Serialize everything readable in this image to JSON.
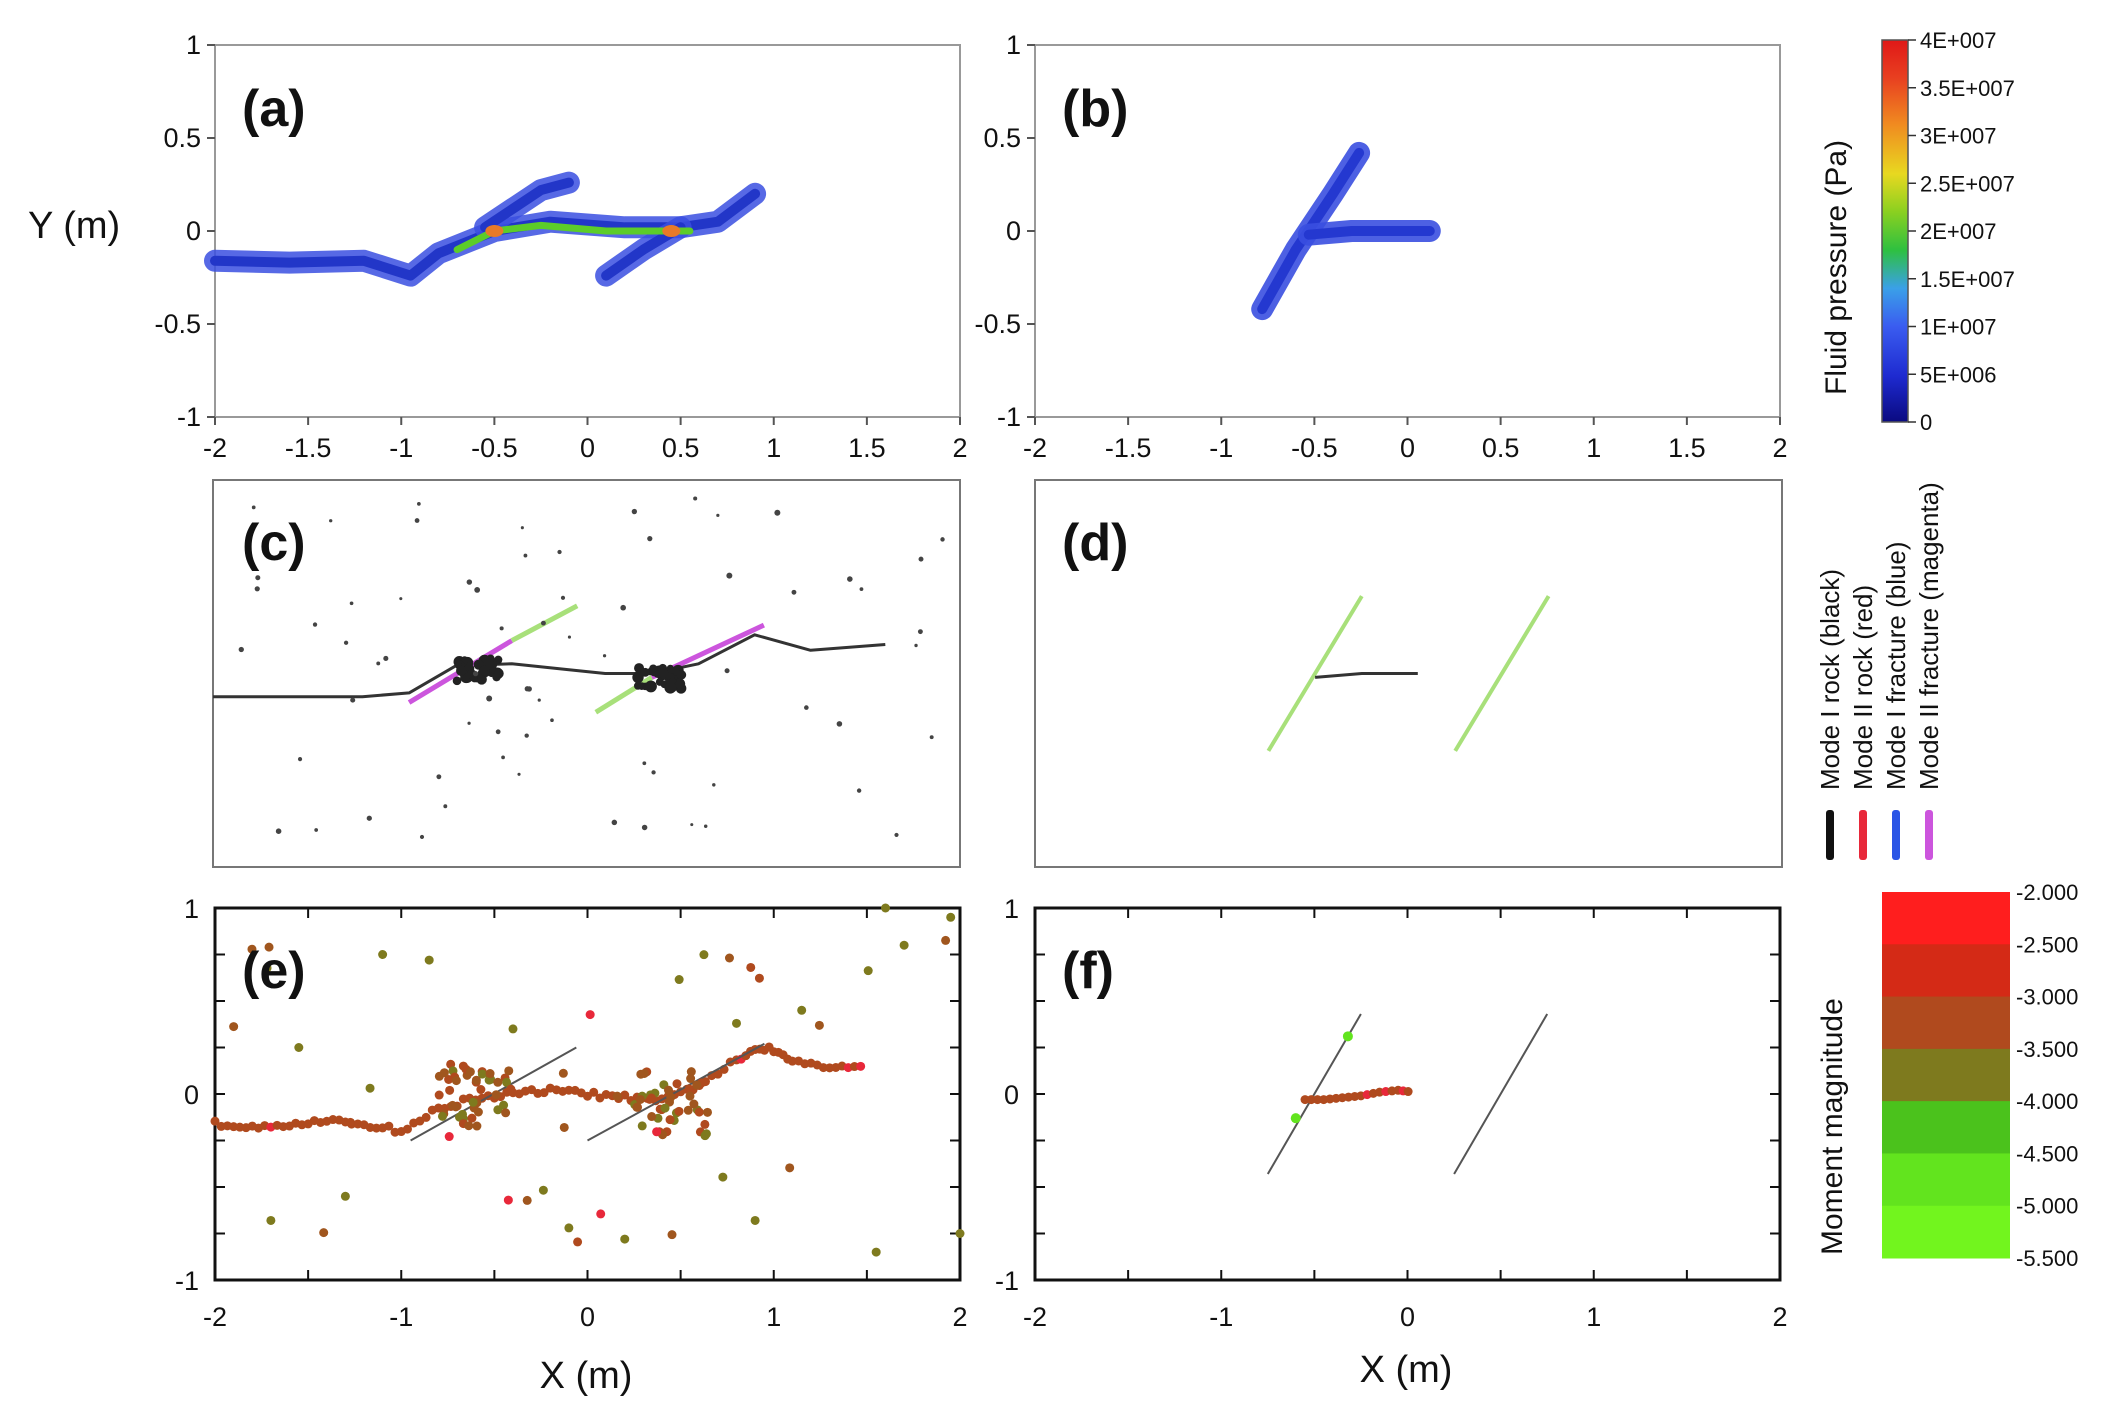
{
  "figure": {
    "panels": [
      {
        "id": "a",
        "label": "(a)"
      },
      {
        "id": "b",
        "label": "(b)"
      },
      {
        "id": "c",
        "label": "(c)"
      },
      {
        "id": "d",
        "label": "(d)"
      },
      {
        "id": "e",
        "label": "(e)"
      },
      {
        "id": "f",
        "label": "(f)"
      }
    ],
    "y_axis_label": "Y (m)",
    "x_axis_label": "X (m)",
    "x_ticks": [
      "-2",
      "-1.5",
      "-1",
      "-0.5",
      "0",
      "0.5",
      "1",
      "1.5",
      "2"
    ],
    "y_ticks_ab": [
      "1",
      "0.5",
      "0",
      "-0.5",
      "-1"
    ],
    "x_ticks_ef": [
      "-2",
      "-1",
      "0",
      "1",
      "2"
    ],
    "y_ticks_ef": [
      "1",
      "0",
      "-1"
    ],
    "pressure_colorbar": {
      "title": "Fluid pressure (Pa)",
      "ticks": [
        "4E+007",
        "3.5E+007",
        "3E+007",
        "2.5E+007",
        "2E+007",
        "1.5E+007",
        "1E+007",
        "5E+006",
        "0"
      ]
    },
    "mode_legend": {
      "items": [
        {
          "label": "Mode I rock (black)",
          "color": "#111111"
        },
        {
          "label": "Mode II rock (red)",
          "color": "#e8283a"
        },
        {
          "label": "Mode I fracture (blue)",
          "color": "#2a55e6"
        },
        {
          "label": "Mode II fracture (magenta)",
          "color": "#cc55dd"
        }
      ]
    },
    "magnitude_colorbar": {
      "title": "Moment magnitude",
      "ticks": [
        "-2.000",
        "-2.500",
        "-3.000",
        "-3.500",
        "-4.000",
        "-4.500",
        "-5.000",
        "-5.500"
      ],
      "colors": [
        "#ff1e1e",
        "#d42a16",
        "#b04a1e",
        "#7e7a1e",
        "#4bc21c",
        "#62e41e",
        "#72f51e"
      ]
    }
  },
  "chart_data": [
    {
      "type": "heatmap",
      "panel": "(a)",
      "xlabel": "",
      "ylabel": "Y (m)",
      "xlim": [
        -2,
        2
      ],
      "ylim": [
        -1,
        1
      ],
      "fractures": [
        {
          "points": [
            [
              -2,
              -0.16
            ],
            [
              -1.6,
              -0.17
            ],
            [
              -1.2,
              -0.16
            ],
            [
              -0.95,
              -0.24
            ],
            [
              -0.8,
              -0.12
            ],
            [
              -0.5,
              0.0
            ],
            [
              -0.2,
              0.05
            ],
            [
              0.2,
              0.02
            ],
            [
              0.5,
              0.02
            ],
            [
              0.7,
              0.05
            ],
            [
              0.9,
              0.2
            ]
          ],
          "pressure": 8000000
        },
        {
          "points": [
            [
              -0.55,
              0.02
            ],
            [
              -0.4,
              0.12
            ],
            [
              -0.25,
              0.22
            ],
            [
              -0.1,
              0.26
            ]
          ],
          "pressure": 8000000
        },
        {
          "points": [
            [
              0.1,
              -0.24
            ],
            [
              0.3,
              -0.1
            ],
            [
              0.5,
              0.02
            ]
          ],
          "pressure": 8000000
        },
        {
          "points": [
            [
              -0.7,
              -0.1
            ],
            [
              -0.5,
              0.0
            ],
            [
              -0.25,
              0.03
            ],
            [
              0.1,
              0.0
            ],
            [
              0.4,
              0.0
            ],
            [
              0.55,
              0.0
            ]
          ],
          "pressure": 20000000
        }
      ],
      "hot_spots": [
        [
          -0.5,
          0.0
        ],
        [
          0.45,
          0.0
        ]
      ]
    },
    {
      "type": "heatmap",
      "panel": "(b)",
      "xlim": [
        -2,
        2
      ],
      "ylim": [
        -1,
        1
      ],
      "fractures": [
        {
          "points": [
            [
              -0.78,
              -0.42
            ],
            [
              -0.6,
              -0.1
            ],
            [
              -0.4,
              0.2
            ],
            [
              -0.26,
              0.42
            ]
          ],
          "pressure": 6000000
        },
        {
          "points": [
            [
              -0.53,
              -0.02
            ],
            [
              -0.3,
              0.0
            ],
            [
              -0.05,
              0.0
            ],
            [
              0.12,
              0.0
            ]
          ],
          "pressure": 6000000
        }
      ]
    },
    {
      "type": "scatter",
      "panel": "(c)",
      "xlim": [
        -2,
        2
      ],
      "ylim": [
        -1,
        1
      ],
      "series": [
        {
          "points": [
            [
              -2,
              -0.12
            ],
            [
              -1.6,
              -0.12
            ],
            [
              -1.2,
              -0.12
            ],
            [
              -0.95,
              -0.1
            ],
            [
              -0.7,
              0.04
            ],
            [
              -0.4,
              0.05
            ],
            [
              -0.1,
              0.02
            ],
            [
              0.1,
              0.0
            ],
            [
              0.35,
              0.0
            ],
            [
              0.6,
              0.05
            ],
            [
              0.9,
              0.2
            ],
            [
              1.2,
              0.12
            ],
            [
              1.6,
              0.15
            ]
          ]
        },
        {
          "points": [
            [
              -0.95,
              -0.15
            ],
            [
              -0.4,
              0.17
            ]
          ]
        },
        {
          "points": [
            [
              -0.4,
              0.17
            ],
            [
              -0.05,
              0.35
            ]
          ]
        },
        {
          "points": [
            [
              0.05,
              -0.2
            ],
            [
              0.35,
              -0.02
            ]
          ]
        },
        {
          "points": [
            [
              0.35,
              -0.02
            ],
            [
              0.95,
              0.25
            ]
          ]
        }
      ],
      "clusters": [
        [
          -0.58,
          0.02
        ],
        [
          0.4,
          -0.02
        ]
      ]
    },
    {
      "type": "scatter",
      "panel": "(d)",
      "xlim": [
        -2,
        2
      ],
      "ylim": [
        -1,
        1
      ],
      "series": [
        {
          "points": [
            [
              -0.75,
              -0.4
            ],
            [
              -0.25,
              0.4
            ]
          ]
        },
        {
          "points": [
            [
              0.25,
              -0.4
            ],
            [
              0.75,
              0.4
            ]
          ]
        },
        {
          "points": [
            [
              -0.5,
              -0.02
            ],
            [
              -0.25,
              0.0
            ],
            [
              0.05,
              0.0
            ]
          ]
        }
      ]
    },
    {
      "type": "scatter",
      "panel": "(e)",
      "xlabel": "X (m)",
      "ylabel": "",
      "xlim": [
        -2,
        2
      ],
      "ylim": [
        -1,
        1
      ],
      "series": [
        {
          "points": [
            [
              -2,
              -0.16
            ],
            [
              -1.8,
              -0.17
            ],
            [
              -1.6,
              -0.16
            ],
            [
              -1.4,
              -0.15
            ],
            [
              -1.2,
              -0.16
            ],
            [
              -1.0,
              -0.2
            ],
            [
              -0.8,
              -0.08
            ],
            [
              -0.6,
              -0.02
            ],
            [
              -0.4,
              0.0
            ],
            [
              -0.2,
              0.02
            ],
            [
              0.0,
              0.0
            ],
            [
              0.2,
              -0.02
            ],
            [
              0.4,
              -0.04
            ],
            [
              0.6,
              0.05
            ],
            [
              0.8,
              0.18
            ],
            [
              0.95,
              0.25
            ],
            [
              1.1,
              0.18
            ],
            [
              1.3,
              0.15
            ],
            [
              1.5,
              0.15
            ]
          ]
        },
        {
          "points": [
            [
              -1.55,
              0.25
            ],
            [
              -1.1,
              0.75
            ],
            [
              -0.85,
              0.72
            ],
            [
              -1.7,
              -0.68
            ],
            [
              -1.3,
              -0.55
            ],
            [
              -0.4,
              0.35
            ],
            [
              0.8,
              0.38
            ],
            [
              1.15,
              0.45
            ],
            [
              -0.1,
              -0.72
            ],
            [
              0.2,
              -0.78
            ],
            [
              0.9,
              -0.68
            ],
            [
              1.55,
              -0.85
            ],
            [
              1.7,
              0.8
            ],
            [
              1.6,
              1.0
            ],
            [
              1.95,
              0.95
            ],
            [
              2.0,
              -0.75
            ]
          ]
        }
      ],
      "fracture_lines": [
        {
          "points": [
            [
              -0.95,
              -0.25
            ],
            [
              -0.06,
              0.25
            ]
          ]
        },
        {
          "points": [
            [
              0.0,
              -0.25
            ],
            [
              0.95,
              0.27
            ]
          ]
        }
      ],
      "clusters": [
        [
          -0.6,
          0.0
        ],
        [
          0.45,
          -0.05
        ]
      ]
    },
    {
      "type": "scatter",
      "panel": "(f)",
      "xlabel": "X (m)",
      "xlim": [
        -2,
        2
      ],
      "ylim": [
        -1,
        1
      ],
      "series": [
        {
          "points": [
            [
              -0.55,
              -0.03
            ],
            [
              -0.45,
              -0.03
            ],
            [
              -0.35,
              -0.02
            ],
            [
              -0.25,
              -0.01
            ],
            [
              -0.15,
              0.01
            ],
            [
              -0.05,
              0.02
            ],
            [
              0.03,
              0.01
            ]
          ]
        },
        {
          "points": [
            [
              -0.6,
              -0.13
            ],
            [
              -0.32,
              0.31
            ]
          ]
        }
      ],
      "fracture_lines": [
        {
          "points": [
            [
              -0.75,
              -0.43
            ],
            [
              -0.25,
              0.43
            ]
          ]
        },
        {
          "points": [
            [
              0.25,
              -0.43
            ],
            [
              0.75,
              0.43
            ]
          ]
        }
      ]
    }
  ]
}
